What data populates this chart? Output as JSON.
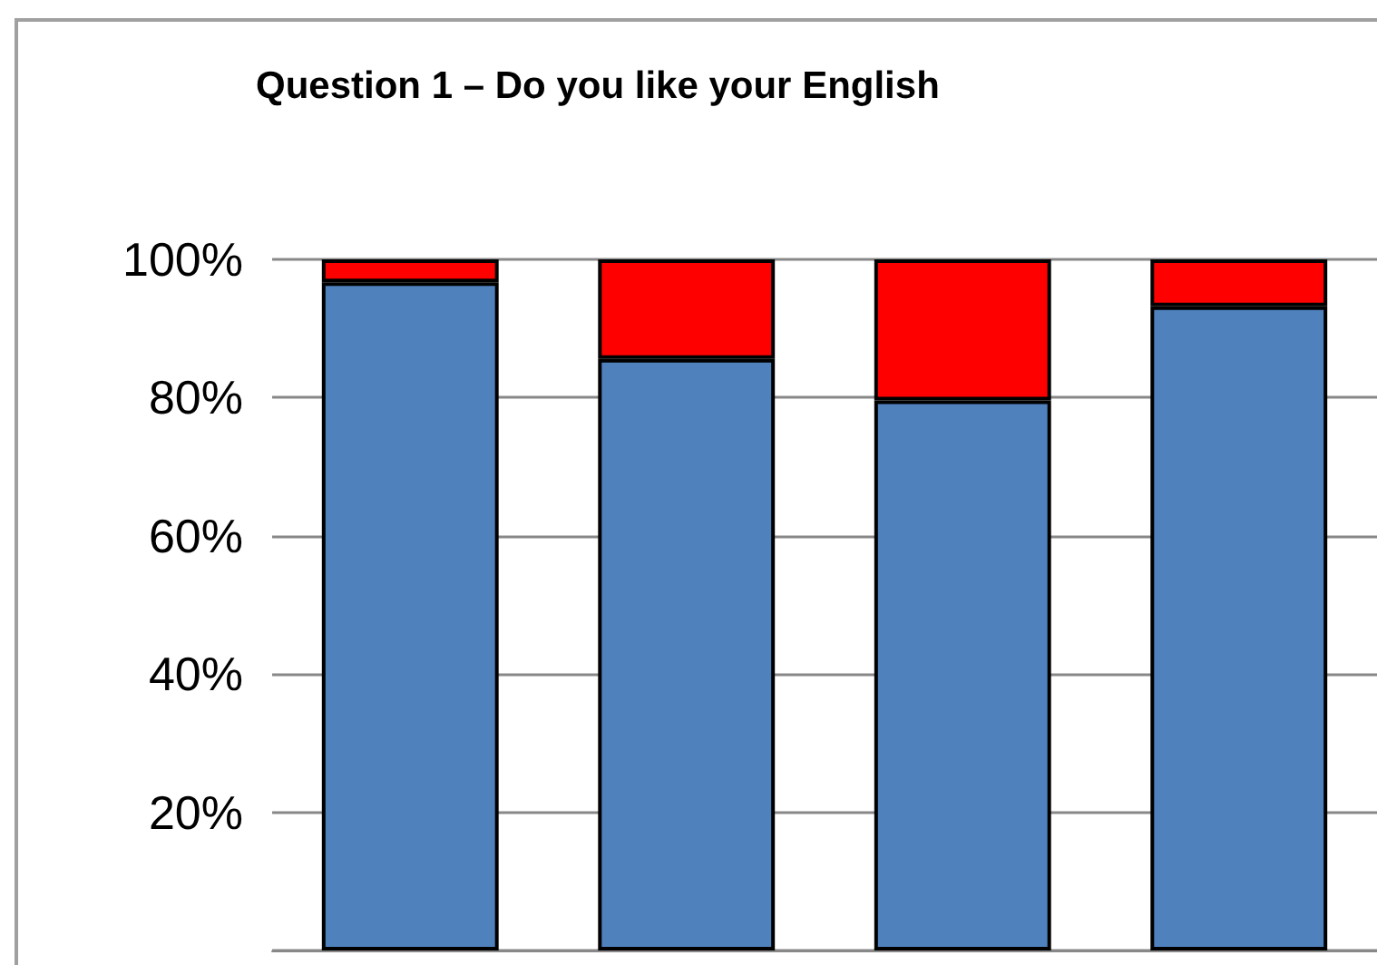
{
  "chart_data": {
    "type": "bar",
    "title": "Question 1 – Do you like your English",
    "categories": [
      null,
      null,
      null,
      null
    ],
    "stacked": true,
    "series": [
      {
        "color": "#4f81bd",
        "values": [
          96.7,
          85.6,
          79.6,
          93.2
        ]
      },
      {
        "color": "#ff0000",
        "values": [
          3.3,
          14.4,
          20.4,
          6.8
        ]
      }
    ],
    "ylim": [
      0,
      100
    ],
    "yticks": [
      {
        "value": 20,
        "label": "20%"
      },
      {
        "value": 40,
        "label": "40%"
      },
      {
        "value": 60,
        "label": "60%"
      },
      {
        "value": 80,
        "label": "80%"
      },
      {
        "value": 100,
        "label": "100%"
      }
    ],
    "grid": "y"
  }
}
